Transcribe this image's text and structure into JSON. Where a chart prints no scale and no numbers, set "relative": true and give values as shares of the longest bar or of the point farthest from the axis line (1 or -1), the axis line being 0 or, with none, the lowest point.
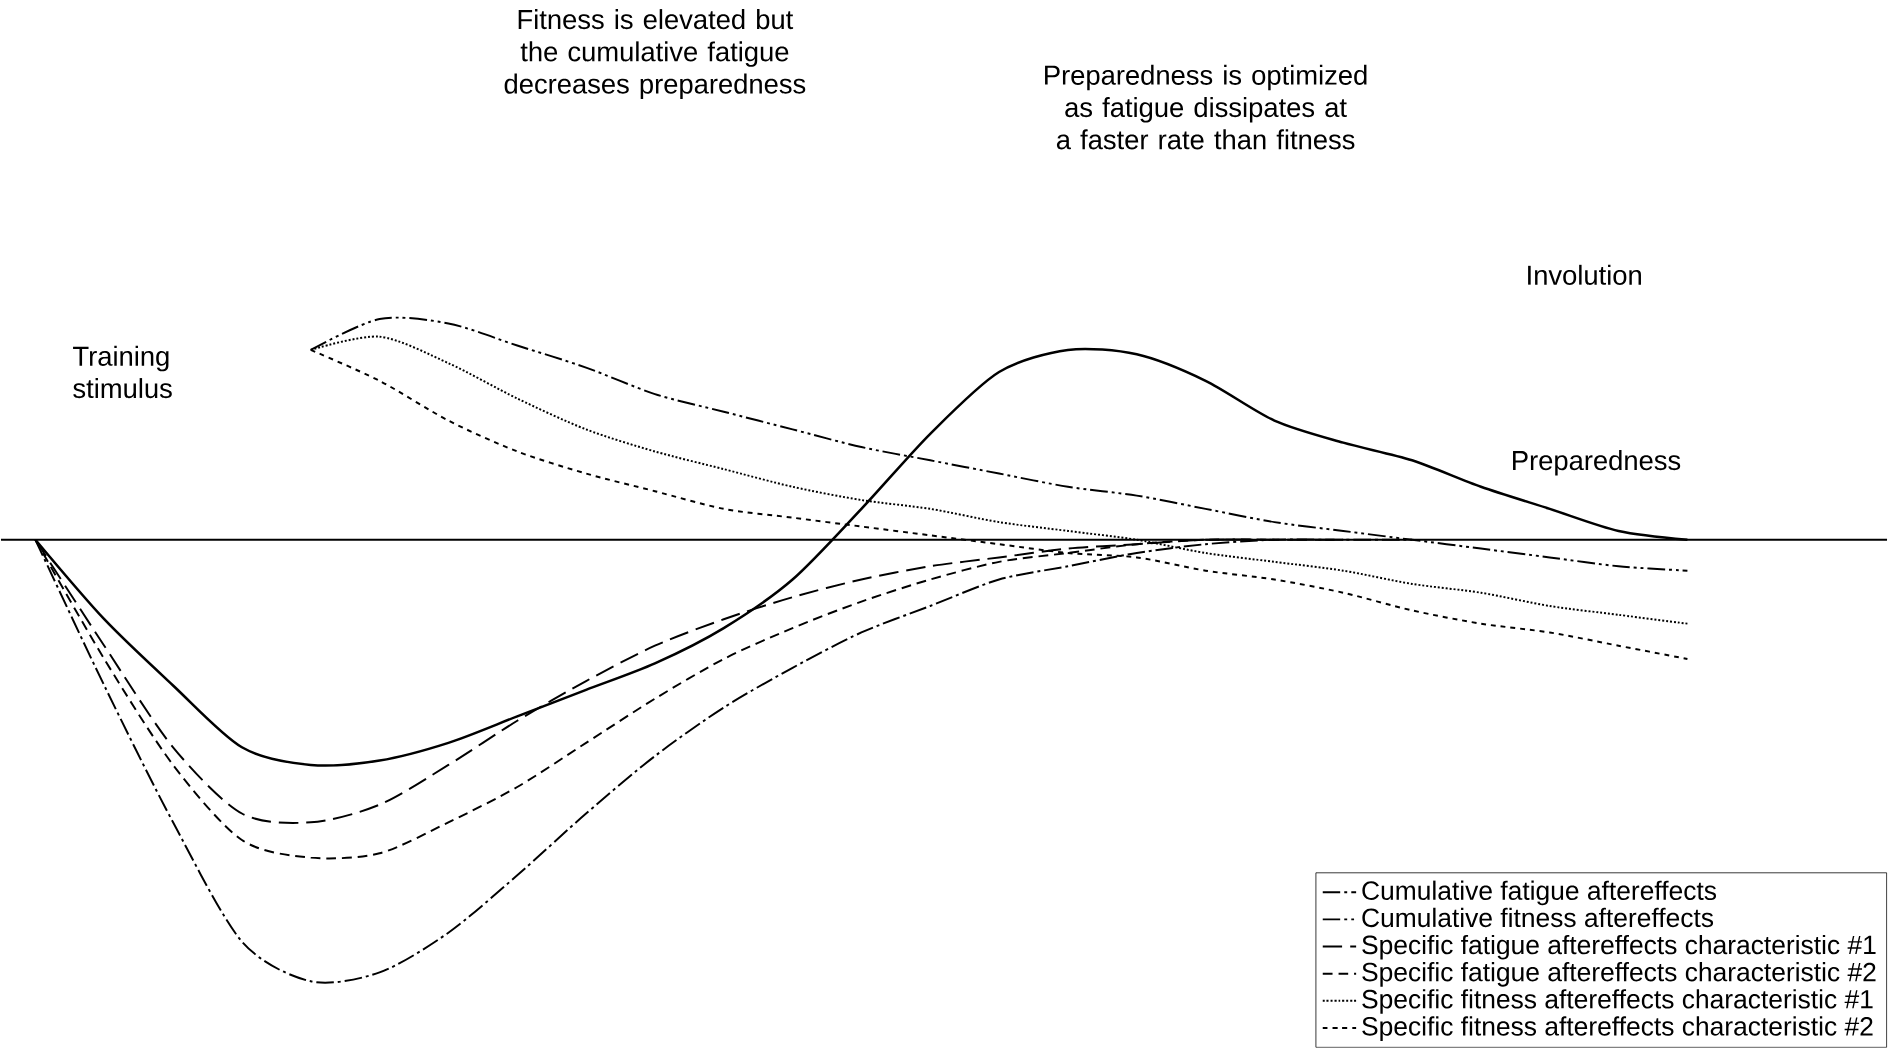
{
  "chart_data": {
    "type": "line",
    "relative": true,
    "marker": "none",
    "legend": "bottom right",
    "categories": [
      null,
      null,
      null,
      null,
      null,
      null,
      null,
      null,
      null,
      null,
      null,
      null,
      null,
      null,
      null,
      null,
      null,
      null,
      null,
      null,
      null,
      null,
      null,
      null,
      null
    ],
    "annotations": [
      "Training stimulus",
      "Fitness is elevated but the cumulative fatigue decreases preparedness",
      "Preparedness is optimized as fatigue dissipates at a faster rate than fitness",
      "Involution"
    ],
    "series": [
      {
        "name": "Preparedness",
        "color": "#000000",
        "line_style": "solid",
        "values": [
          0,
          -0.18,
          -0.33,
          -0.47,
          -0.51,
          -0.5,
          -0.46,
          -0.4,
          -0.34,
          -0.28,
          -0.2,
          -0.09,
          0.07,
          0.24,
          0.38,
          0.43,
          0.42,
          0.36,
          0.27,
          0.22,
          0.18,
          0.12,
          0.07,
          0.02,
          0
        ]
      },
      {
        "name": "Cumulative fatigue aftereffects",
        "color": "#000000",
        "line_style": "dashed",
        "values": [
          0,
          -0.33,
          -0.64,
          -0.91,
          -1,
          -0.98,
          -0.89,
          -0.76,
          -0.62,
          -0.49,
          -0.38,
          -0.29,
          -0.21,
          -0.15,
          -0.09,
          -0.06,
          -0.03,
          -0.01,
          0,
          0,
          0,
          null,
          null,
          null,
          null
        ]
      },
      {
        "name": "Cumulative fitness aftereffects",
        "color": "#000000",
        "line_style": "dashed",
        "values": [
          null,
          null,
          null,
          null,
          0.43,
          0.5,
          0.49,
          0.44,
          0.39,
          0.33,
          0.29,
          0.25,
          0.21,
          0.18,
          0.15,
          0.12,
          0.1,
          0.07,
          0.04,
          0.02,
          0,
          -0.02,
          -0.04,
          -0.06,
          -0.07
        ]
      },
      {
        "name": "Specific fatigue aftereffects characteristic #1",
        "color": "#000000",
        "line_style": "dashed",
        "values": [
          0,
          -0.24,
          -0.47,
          -0.62,
          -0.64,
          -0.6,
          -0.51,
          -0.41,
          -0.32,
          -0.24,
          -0.18,
          -0.13,
          -0.09,
          -0.06,
          -0.04,
          -0.02,
          -0.01,
          0,
          0,
          0,
          null,
          null,
          null,
          null,
          null
        ]
      },
      {
        "name": "Specific fatigue aftereffects characteristic #2",
        "color": "#000000",
        "line_style": "dashed",
        "values": [
          0,
          -0.27,
          -0.51,
          -0.68,
          -0.72,
          -0.71,
          -0.64,
          -0.56,
          -0.46,
          -0.36,
          -0.27,
          -0.2,
          -0.14,
          -0.09,
          -0.05,
          -0.03,
          -0.01,
          0,
          0,
          null,
          null,
          null,
          null,
          null,
          null
        ]
      },
      {
        "name": "Specific fitness aftereffects characteristic #1",
        "color": "#000000",
        "line_style": "dotted",
        "values": [
          null,
          null,
          null,
          null,
          0.43,
          0.46,
          0.4,
          0.32,
          0.25,
          0.2,
          0.16,
          0.12,
          0.09,
          0.07,
          0.04,
          0.02,
          0,
          -0.03,
          -0.05,
          -0.07,
          -0.1,
          -0.12,
          -0.15,
          -0.17,
          -0.19
        ]
      },
      {
        "name": "Specific fitness aftereffects characteristic #2",
        "color": "#000000",
        "line_style": "dashed",
        "values": [
          null,
          null,
          null,
          null,
          0.43,
          0.36,
          0.27,
          0.2,
          0.15,
          0.11,
          0.07,
          0.05,
          0.03,
          0.01,
          -0.01,
          -0.03,
          -0.04,
          -0.07,
          -0.09,
          -0.12,
          -0.16,
          -0.19,
          -0.21,
          -0.24,
          -0.27
        ]
      }
    ]
  }
}
